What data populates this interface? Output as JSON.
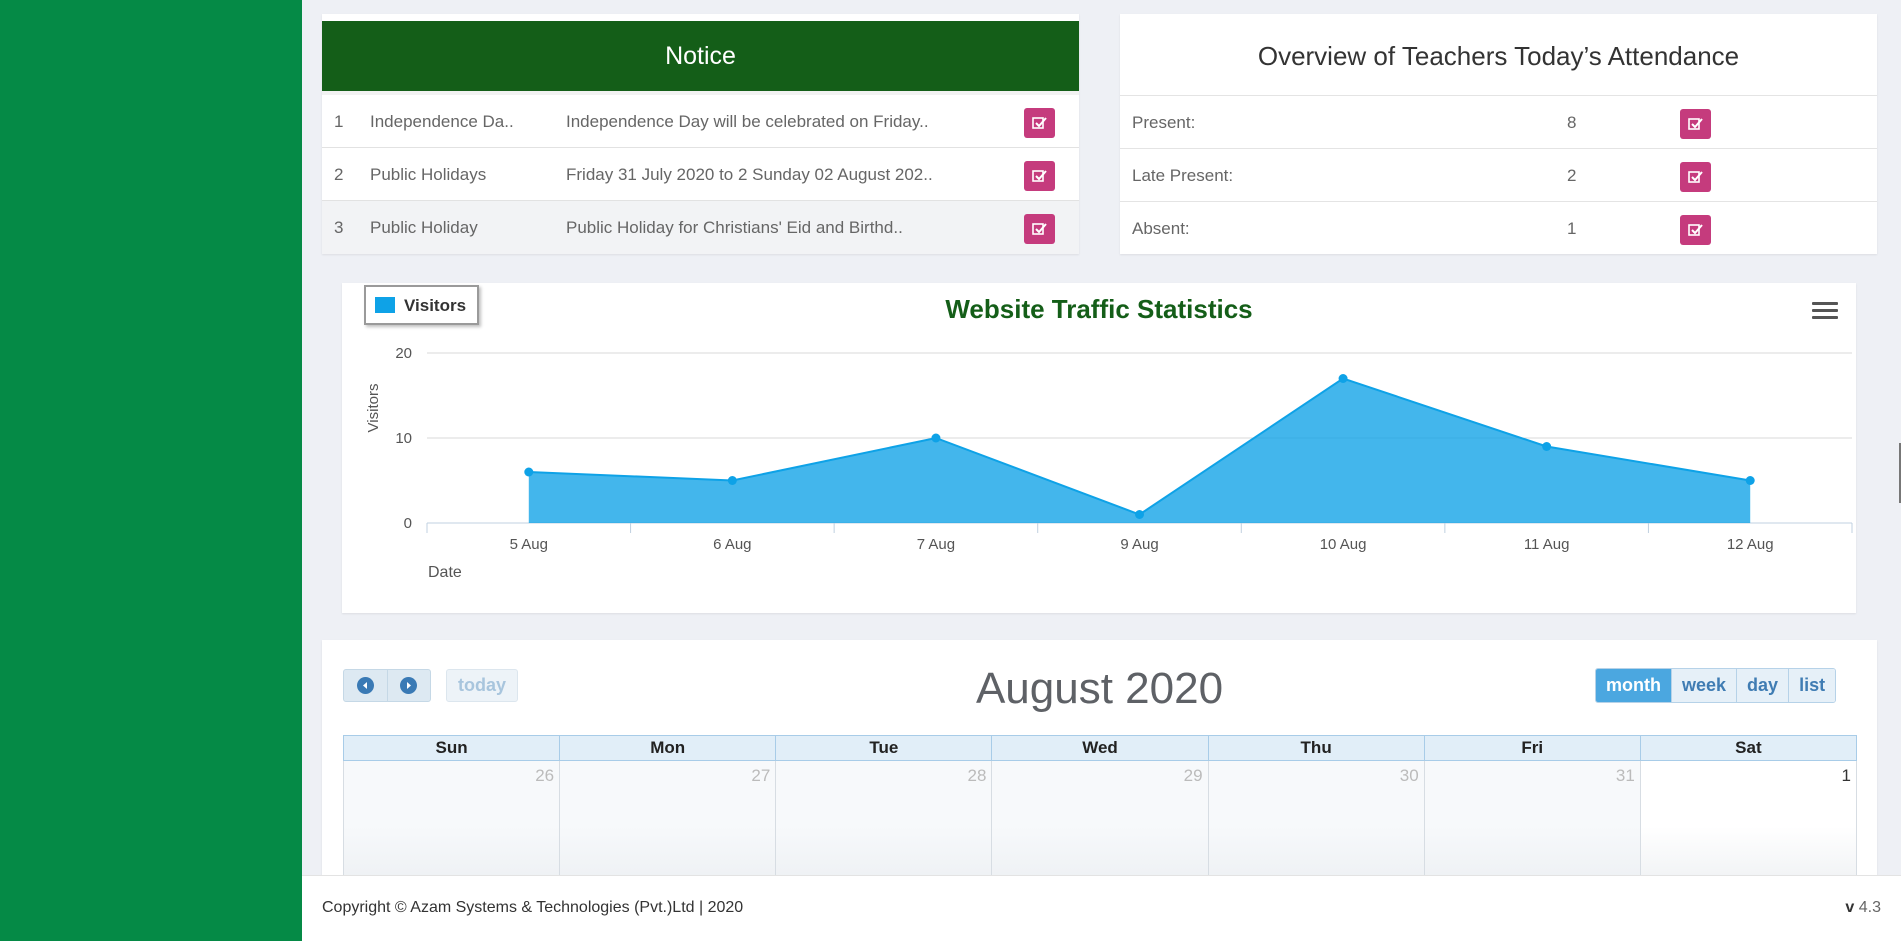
{
  "notice": {
    "title": "Notice",
    "rows": [
      {
        "num": "1",
        "title": "Independence Da..",
        "desc": "Independence Day will be celebrated on Friday.."
      },
      {
        "num": "2",
        "title": "Public Holidays",
        "desc": "Friday 31 July 2020 to 2 Sunday 02 August 202.."
      },
      {
        "num": "3",
        "title": "Public Holiday",
        "desc": "Public Holiday for Christians' Eid and Birthd.."
      }
    ]
  },
  "attendance": {
    "title": "Overview of Teachers Today’s Attendance",
    "rows": [
      {
        "label": "Present:",
        "value": "8"
      },
      {
        "label": "Late Present:",
        "value": "2"
      },
      {
        "label": "Absent:",
        "value": "1"
      }
    ]
  },
  "chart_data": {
    "type": "area",
    "title": "Website Traffic Statistics",
    "xlabel": "Date",
    "ylabel": "Visitors",
    "categories": [
      "5 Aug",
      "6 Aug",
      "7 Aug",
      "9 Aug",
      "10 Aug",
      "11 Aug",
      "12 Aug"
    ],
    "series": [
      {
        "name": "Visitors",
        "values": [
          6,
          5,
          10,
          1,
          17,
          9,
          5
        ],
        "color": "#0ea2e7"
      }
    ],
    "ylim": [
      0,
      20
    ],
    "yticks": [
      "0",
      "10",
      "20"
    ],
    "grid": true,
    "legend": "top-left"
  },
  "calendar": {
    "title": "August 2020",
    "today_label": "today",
    "views": [
      "month",
      "week",
      "day",
      "list"
    ],
    "active_view": "month",
    "weekdays": [
      "Sun",
      "Mon",
      "Tue",
      "Wed",
      "Thu",
      "Fri",
      "Sat"
    ],
    "first_week": [
      "26",
      "27",
      "28",
      "29",
      "30",
      "31",
      "1"
    ]
  },
  "footer": {
    "copyright": "Copyright © Azam Systems & Technologies (Pvt.)Ltd | 2020",
    "version_prefix": "v",
    "version": "4.3"
  },
  "colors": {
    "sidebar": "#058a46",
    "notice_header": "#145e18",
    "edit_button": "#c53b7d",
    "chart_area": "#0ea2e7"
  }
}
